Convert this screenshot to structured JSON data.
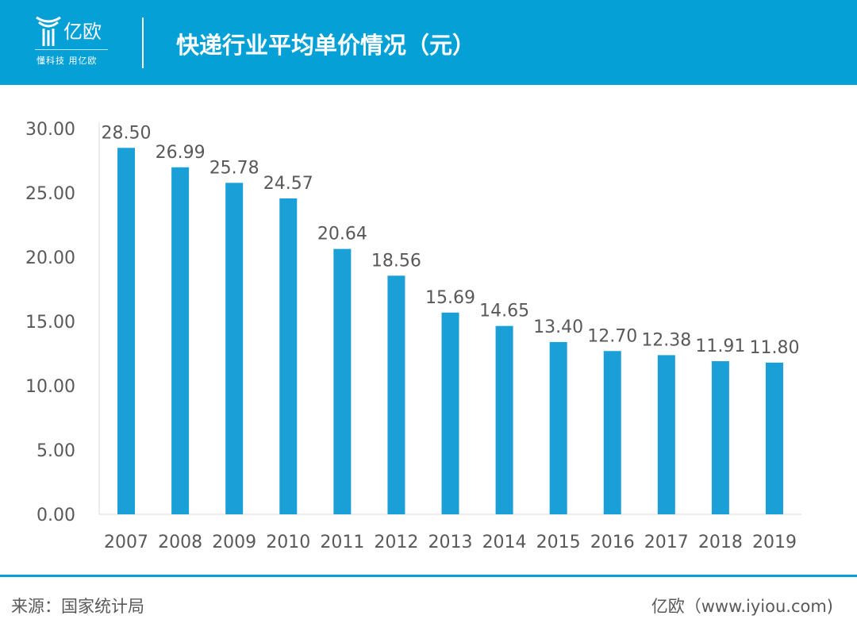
{
  "header": {
    "logo_text": "亿欧",
    "logo_tagline": "懂科技 用亿欧",
    "title": "快递行业平均单价情况（元）"
  },
  "footer": {
    "source": "来源：国家统计局",
    "brand": "亿欧（www.iyiou.com)"
  },
  "colors": {
    "header": "#05a0d6",
    "bar": "#1a9fd6"
  },
  "chart_data": {
    "type": "bar",
    "title": "快递行业平均单价情况（元）",
    "xlabel": "",
    "ylabel": "",
    "categories": [
      "2007",
      "2008",
      "2009",
      "2010",
      "2011",
      "2012",
      "2013",
      "2014",
      "2015",
      "2016",
      "2017",
      "2018",
      "2019"
    ],
    "values": [
      28.5,
      26.99,
      25.78,
      24.57,
      20.64,
      18.56,
      15.69,
      14.65,
      13.4,
      12.7,
      12.38,
      11.91,
      11.8
    ],
    "ylim": [
      0,
      30
    ],
    "yticks": [
      "0.00",
      "5.00",
      "10.00",
      "15.00",
      "20.00",
      "25.00",
      "30.00"
    ],
    "grid": false,
    "legend": "none"
  }
}
